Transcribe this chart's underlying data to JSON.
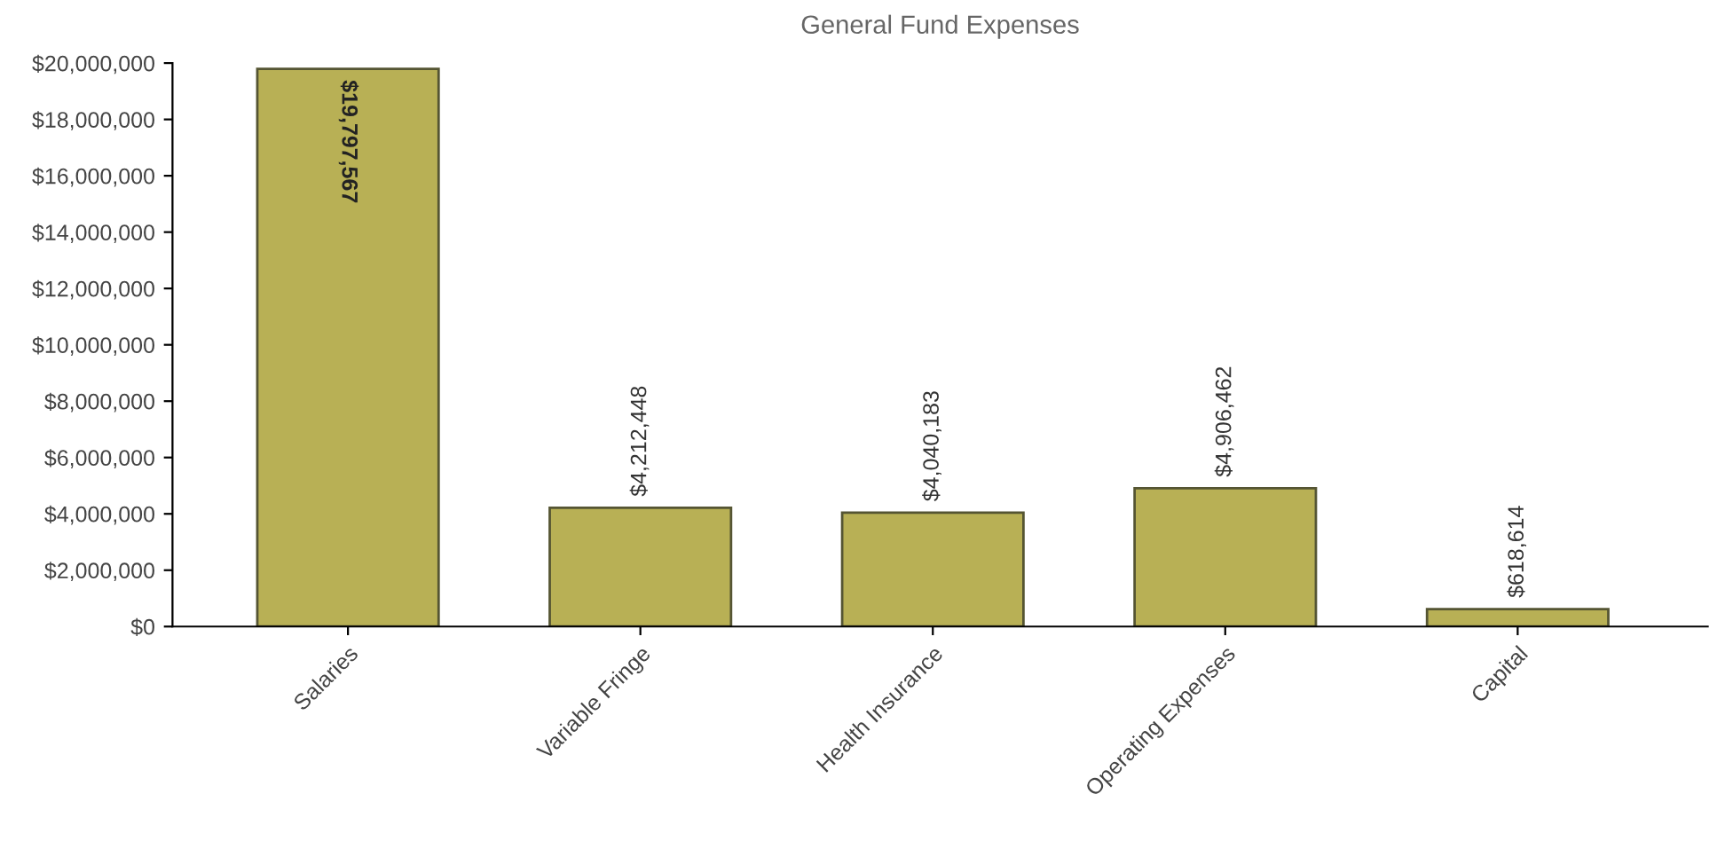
{
  "chart_data": {
    "type": "bar",
    "title": "General Fund Expenses",
    "categories": [
      "Salaries",
      "Variable Fringe",
      "Health Insurance",
      "Operating Expenses",
      "Capital"
    ],
    "values": [
      19797567,
      4212448,
      4040183,
      4906462,
      618614
    ],
    "value_labels": [
      "$19,797,567",
      "$4,212,448",
      "$4,040,183",
      "$4,906,462",
      "$618,614"
    ],
    "color": "#b8b055",
    "ylim": [
      0,
      20000000
    ],
    "yticks": [
      {
        "value": 0,
        "label": "$0"
      },
      {
        "value": 2000000,
        "label": "$2,000,000"
      },
      {
        "value": 4000000,
        "label": "$4,000,000"
      },
      {
        "value": 6000000,
        "label": "$6,000,000"
      },
      {
        "value": 8000000,
        "label": "$8,000,000"
      },
      {
        "value": 10000000,
        "label": "$10,000,000"
      },
      {
        "value": 12000000,
        "label": "$12,000,000"
      },
      {
        "value": 14000000,
        "label": "$14,000,000"
      },
      {
        "value": 16000000,
        "label": "$16,000,000"
      },
      {
        "value": 18000000,
        "label": "$18,000,000"
      },
      {
        "value": 20000000,
        "label": "$20,000,000"
      }
    ],
    "grid": false
  }
}
